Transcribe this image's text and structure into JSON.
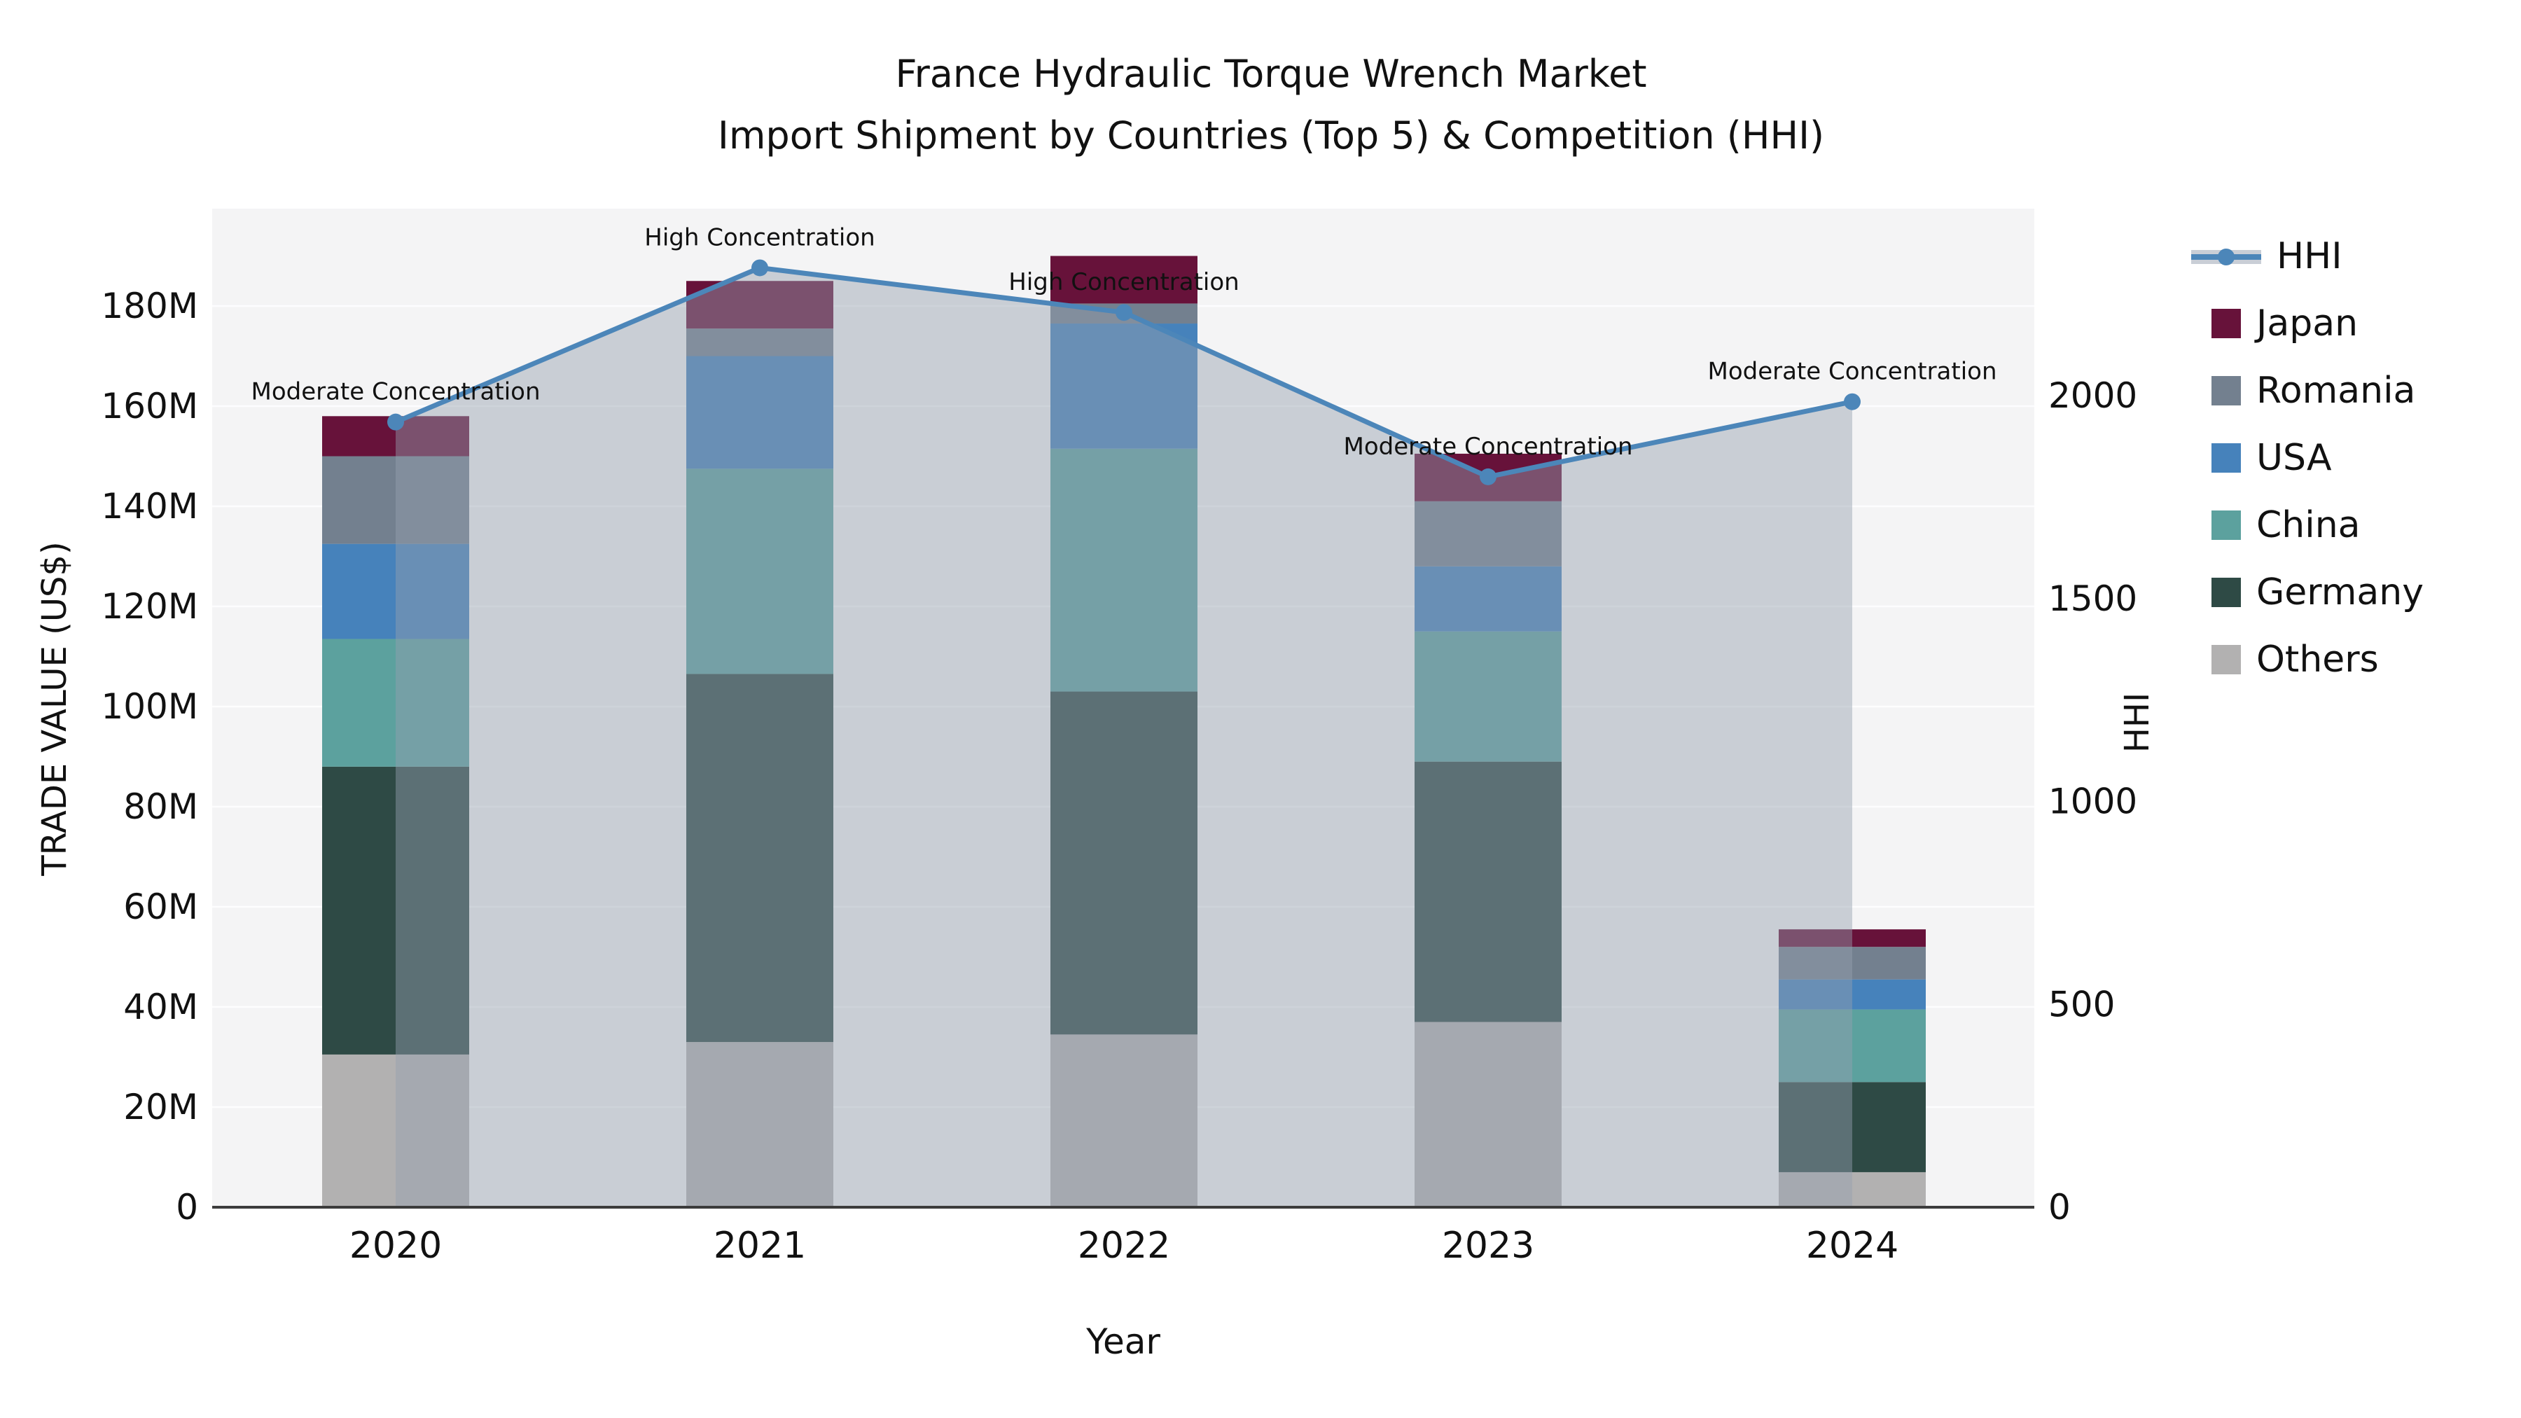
{
  "title": {
    "line1": "France Hydraulic Torque Wrench Market",
    "line2": "Import Shipment by Countries (Top 5) & Competition (HHI)"
  },
  "axes": {
    "y_left_label": "TRADE VALUE (US$)",
    "y_right_label": "HHI",
    "x_label": "Year",
    "y_left_ticks": [
      {
        "value": 0,
        "label": "0"
      },
      {
        "value": 20,
        "label": "20M"
      },
      {
        "value": 40,
        "label": "40M"
      },
      {
        "value": 60,
        "label": "60M"
      },
      {
        "value": 80,
        "label": "80M"
      },
      {
        "value": 100,
        "label": "100M"
      },
      {
        "value": 120,
        "label": "120M"
      },
      {
        "value": 140,
        "label": "140M"
      },
      {
        "value": 160,
        "label": "160M"
      },
      {
        "value": 180,
        "label": "180M"
      }
    ],
    "y_right_ticks": [
      {
        "value": 0,
        "label": "0"
      },
      {
        "value": 500,
        "label": "500"
      },
      {
        "value": 1000,
        "label": "1000"
      },
      {
        "value": 1500,
        "label": "1500"
      },
      {
        "value": 2000,
        "label": "2000"
      }
    ]
  },
  "legend": {
    "items": [
      {
        "label": "HHI",
        "type": "line",
        "color": "#4c86b9",
        "patch": "#c9ced6"
      },
      {
        "label": "Japan",
        "type": "patch",
        "color": "#67123a"
      },
      {
        "label": "Romania",
        "type": "patch",
        "color": "#73808f"
      },
      {
        "label": "USA",
        "type": "patch",
        "color": "#4682bb"
      },
      {
        "label": "China",
        "type": "patch",
        "color": "#5ca19e"
      },
      {
        "label": "Germany",
        "type": "patch",
        "color": "#2e4a45"
      },
      {
        "label": "Others",
        "type": "patch",
        "color": "#b2b1b1"
      }
    ]
  },
  "chart_data": {
    "type": "bar",
    "subtype": "stacked-bars-with-line-overlay",
    "categories": [
      "2020",
      "2021",
      "2022",
      "2023",
      "2024"
    ],
    "value_unit": "Million US$",
    "stack_order_bottom_to_top": [
      "Others",
      "Germany",
      "China",
      "USA",
      "Romania",
      "Japan"
    ],
    "series": [
      {
        "name": "Others",
        "color": "#b2b1b1",
        "values": [
          30.5,
          33.0,
          34.5,
          37.0,
          7.0
        ]
      },
      {
        "name": "Germany",
        "color": "#2e4a45",
        "values": [
          57.5,
          73.5,
          68.5,
          52.0,
          18.0
        ]
      },
      {
        "name": "China",
        "color": "#5ca19e",
        "values": [
          25.5,
          41.0,
          48.5,
          26.0,
          14.5
        ]
      },
      {
        "name": "USA",
        "color": "#4682bb",
        "values": [
          19.0,
          22.5,
          25.0,
          13.0,
          6.0
        ]
      },
      {
        "name": "Romania",
        "color": "#73808f",
        "values": [
          17.5,
          5.5,
          4.0,
          13.0,
          6.5
        ]
      },
      {
        "name": "Japan",
        "color": "#67123a",
        "values": [
          8.0,
          9.5,
          9.5,
          9.5,
          3.5
        ]
      }
    ],
    "bar_totals": [
      158.0,
      185.0,
      190.0,
      150.5,
      55.5
    ],
    "line_series": {
      "name": "HHI",
      "axis": "right",
      "color": "#4c86b9",
      "area_fill": "rgba(148,160,176,0.45)",
      "values": [
        1935,
        2315,
        2205,
        1800,
        1985
      ]
    },
    "annotations": [
      {
        "category": "2020",
        "text": "Moderate Concentration"
      },
      {
        "category": "2021",
        "text": "High Concentration"
      },
      {
        "category": "2022",
        "text": "High Concentration"
      },
      {
        "category": "2023",
        "text": "Moderate Concentration"
      },
      {
        "category": "2024",
        "text": "Moderate Concentration"
      }
    ],
    "ylim_left": [
      0,
      199
    ],
    "ylim_right": [
      0,
      2460
    ],
    "grid": "horizontal-white",
    "legend_position": "right-outside"
  },
  "style": {
    "plot_bg": "#f4f4f5",
    "grid_color": "#ffffff",
    "axis_line_color": "#3c3c3c",
    "text_color": "#111111"
  }
}
